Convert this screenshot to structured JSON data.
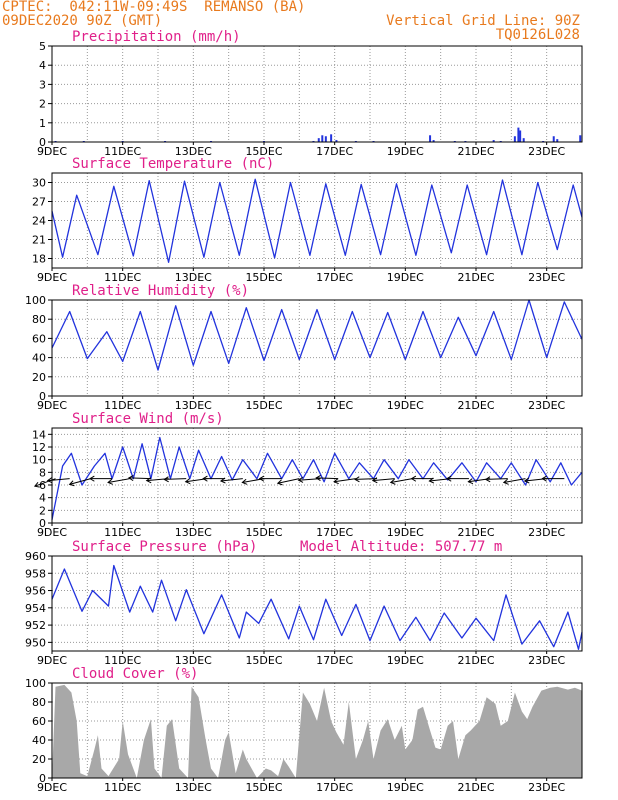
{
  "header": {
    "left_line1": "CPTEC:  042:11W-09:49S  REMANSO (BA)",
    "left_line2": "09DEC2020 90Z (GMT)",
    "right_line1": "Vertical Grid Line: 90Z",
    "right_line2": "TQ0126L028"
  },
  "colors": {
    "header": "#e87a1e",
    "title": "#e0208a",
    "line": "#2233dd",
    "bar": "#a8a8a8",
    "grid": "#9a9a9a"
  },
  "chart_data": [
    {
      "type": "bar",
      "title": "Precipitation (mm/h)",
      "x_labels": [
        "9DEC",
        "11DEC",
        "13DEC",
        "15DEC",
        "17DEC",
        "19DEC",
        "21DEC",
        "23DEC"
      ],
      "x_range_days": [
        0,
        15
      ],
      "ylim": [
        0,
        5
      ],
      "yticks": [
        0,
        1,
        2,
        3,
        4,
        5
      ],
      "color": "line",
      "points": [
        [
          0.1,
          0.05
        ],
        [
          0.9,
          0.05
        ],
        [
          2.0,
          0.05
        ],
        [
          3.2,
          0.05
        ],
        [
          4.5,
          0.05
        ],
        [
          6.0,
          0.05
        ],
        [
          7.4,
          0.05
        ],
        [
          7.55,
          0.2
        ],
        [
          7.65,
          0.35
        ],
        [
          7.75,
          0.3
        ],
        [
          7.9,
          0.4
        ],
        [
          8.05,
          0.1
        ],
        [
          8.6,
          0.05
        ],
        [
          9.1,
          0.05
        ],
        [
          10.7,
          0.35
        ],
        [
          10.8,
          0.1
        ],
        [
          11.4,
          0.05
        ],
        [
          11.7,
          0.05
        ],
        [
          12.5,
          0.1
        ],
        [
          12.7,
          0.05
        ],
        [
          13.1,
          0.3
        ],
        [
          13.2,
          0.75
        ],
        [
          13.25,
          0.6
        ],
        [
          13.35,
          0.2
        ],
        [
          13.9,
          0.05
        ],
        [
          14.2,
          0.3
        ],
        [
          14.3,
          0.15
        ],
        [
          14.95,
          0.35
        ]
      ]
    },
    {
      "type": "line",
      "title": "Surface Temperature (nC)",
      "x_labels": [
        "9DEC",
        "11DEC",
        "13DEC",
        "15DEC",
        "17DEC",
        "19DEC",
        "21DEC",
        "23DEC"
      ],
      "x_range_days": [
        0,
        15
      ],
      "ylim": [
        16.5,
        31.5
      ],
      "yticks": [
        18,
        21,
        24,
        27,
        30
      ],
      "color": "line",
      "points": [
        [
          0,
          25.5
        ],
        [
          0.3,
          18.2
        ],
        [
          0.7,
          28
        ],
        [
          1.3,
          18.6
        ],
        [
          1.75,
          29.4
        ],
        [
          2.3,
          18.4
        ],
        [
          2.75,
          30.3
        ],
        [
          3.3,
          17.4
        ],
        [
          3.75,
          30.2
        ],
        [
          4.3,
          18.2
        ],
        [
          4.75,
          30
        ],
        [
          5.3,
          18.5
        ],
        [
          5.75,
          30.5
        ],
        [
          6.3,
          18.1
        ],
        [
          6.75,
          30
        ],
        [
          7.3,
          18.5
        ],
        [
          7.75,
          29.8
        ],
        [
          8.3,
          18.5
        ],
        [
          8.75,
          29.7
        ],
        [
          9.3,
          18.6
        ],
        [
          9.75,
          29.8
        ],
        [
          10.3,
          18.5
        ],
        [
          10.75,
          29.6
        ],
        [
          11.3,
          18.9
        ],
        [
          11.75,
          29.6
        ],
        [
          12.3,
          18.6
        ],
        [
          12.75,
          30.4
        ],
        [
          13.3,
          18.6
        ],
        [
          13.75,
          30
        ],
        [
          14.3,
          19.4
        ],
        [
          14.75,
          29.6
        ],
        [
          15,
          24.5
        ]
      ]
    },
    {
      "type": "line",
      "title": "Relative Humidity (%)",
      "x_labels": [
        "9DEC",
        "11DEC",
        "13DEC",
        "15DEC",
        "17DEC",
        "19DEC",
        "21DEC",
        "23DEC"
      ],
      "x_range_days": [
        0,
        15
      ],
      "ylim": [
        0,
        100
      ],
      "yticks": [
        0,
        20,
        40,
        60,
        80,
        100
      ],
      "color": "line",
      "points": [
        [
          0,
          50
        ],
        [
          0.5,
          88
        ],
        [
          1.0,
          39
        ],
        [
          1.55,
          67
        ],
        [
          2.0,
          36
        ],
        [
          2.5,
          88
        ],
        [
          3.0,
          27
        ],
        [
          3.5,
          94
        ],
        [
          4.0,
          32
        ],
        [
          4.5,
          88
        ],
        [
          5.0,
          34
        ],
        [
          5.5,
          92
        ],
        [
          6.0,
          37
        ],
        [
          6.5,
          90
        ],
        [
          7.0,
          38
        ],
        [
          7.5,
          90
        ],
        [
          8.0,
          38
        ],
        [
          8.5,
          88
        ],
        [
          9.0,
          40
        ],
        [
          9.5,
          87
        ],
        [
          10.0,
          38
        ],
        [
          10.5,
          88
        ],
        [
          11.0,
          40
        ],
        [
          11.5,
          82
        ],
        [
          12.0,
          42
        ],
        [
          12.5,
          88
        ],
        [
          13.0,
          38
        ],
        [
          13.5,
          100
        ],
        [
          14.0,
          40
        ],
        [
          14.5,
          98
        ],
        [
          15.0,
          59
        ]
      ]
    },
    {
      "type": "line",
      "title": "Surface Wind (m/s)",
      "x_labels": [
        "9DEC",
        "11DEC",
        "13DEC",
        "15DEC",
        "17DEC",
        "19DEC",
        "21DEC",
        "23DEC"
      ],
      "x_range_days": [
        0,
        15
      ],
      "ylim": [
        0,
        15
      ],
      "yticks": [
        0,
        2,
        4,
        6,
        8,
        10,
        12,
        14
      ],
      "color": "line",
      "points": [
        [
          0,
          0.5
        ],
        [
          0.3,
          9
        ],
        [
          0.55,
          11
        ],
        [
          0.85,
          6
        ],
        [
          1.2,
          9
        ],
        [
          1.5,
          11
        ],
        [
          1.7,
          7
        ],
        [
          2.0,
          12
        ],
        [
          2.3,
          7
        ],
        [
          2.55,
          12.5
        ],
        [
          2.8,
          7
        ],
        [
          3.05,
          13.5
        ],
        [
          3.35,
          7
        ],
        [
          3.6,
          12
        ],
        [
          3.9,
          7
        ],
        [
          4.15,
          11.5
        ],
        [
          4.5,
          7
        ],
        [
          4.8,
          10.5
        ],
        [
          5.1,
          6.8
        ],
        [
          5.4,
          10
        ],
        [
          5.8,
          7
        ],
        [
          6.1,
          11
        ],
        [
          6.5,
          7
        ],
        [
          6.8,
          10
        ],
        [
          7.1,
          7
        ],
        [
          7.4,
          10
        ],
        [
          7.7,
          6.5
        ],
        [
          8.0,
          11
        ],
        [
          8.4,
          7
        ],
        [
          8.7,
          9.5
        ],
        [
          9.1,
          7
        ],
        [
          9.4,
          10
        ],
        [
          9.8,
          7
        ],
        [
          10.1,
          10
        ],
        [
          10.5,
          7
        ],
        [
          10.8,
          9.5
        ],
        [
          11.2,
          6.8
        ],
        [
          11.6,
          9.5
        ],
        [
          12.0,
          6.5
        ],
        [
          12.3,
          9.5
        ],
        [
          12.7,
          7
        ],
        [
          13.0,
          9.5
        ],
        [
          13.4,
          6
        ],
        [
          13.7,
          10
        ],
        [
          14.1,
          6.5
        ],
        [
          14.4,
          9.5
        ],
        [
          14.7,
          6
        ],
        [
          15.0,
          8
        ]
      ],
      "vector_x_days": [
        0.1,
        0.5,
        1.1,
        1.7,
        2.2,
        2.8,
        3.3,
        3.8,
        4.4,
        4.9,
        5.4,
        6.0,
        6.5,
        7.0,
        7.6,
        8.1,
        8.6,
        9.2,
        9.7,
        10.2,
        10.8,
        11.3,
        11.8,
        12.4,
        12.9,
        13.4,
        14.0,
        14.5
      ],
      "vector_angles_deg": [
        200,
        185,
        195,
        180,
        190,
        178,
        185,
        182,
        188,
        180,
        186,
        190,
        180,
        192,
        184,
        178,
        188,
        182,
        185,
        190,
        180,
        186,
        180,
        188,
        182,
        190,
        186,
        180
      ],
      "vector_base_value": 7
    },
    {
      "type": "line",
      "title": "Surface Pressure (hPa)",
      "annotation": "Model Altitude: 507.77 m",
      "x_labels": [
        "9DEC",
        "11DEC",
        "13DEC",
        "15DEC",
        "17DEC",
        "19DEC",
        "21DEC",
        "23DEC"
      ],
      "x_range_days": [
        0,
        15
      ],
      "ylim": [
        949,
        960
      ],
      "yticks": [
        950,
        952,
        954,
        956,
        958,
        960
      ],
      "color": "line",
      "points": [
        [
          0,
          955
        ],
        [
          0.35,
          958.5
        ],
        [
          0.85,
          953.6
        ],
        [
          1.15,
          956
        ],
        [
          1.6,
          954.2
        ],
        [
          1.75,
          958.9
        ],
        [
          2.2,
          953.5
        ],
        [
          2.5,
          956.5
        ],
        [
          2.85,
          953.5
        ],
        [
          3.1,
          957.2
        ],
        [
          3.5,
          952.5
        ],
        [
          3.8,
          956.1
        ],
        [
          4.3,
          951
        ],
        [
          4.8,
          955.5
        ],
        [
          5.3,
          950.5
        ],
        [
          5.5,
          953.5
        ],
        [
          5.85,
          952.2
        ],
        [
          6.2,
          955
        ],
        [
          6.7,
          950.4
        ],
        [
          7.0,
          954.2
        ],
        [
          7.4,
          950.3
        ],
        [
          7.75,
          955
        ],
        [
          8.2,
          950.8
        ],
        [
          8.6,
          954.4
        ],
        [
          9.0,
          950.2
        ],
        [
          9.4,
          954.2
        ],
        [
          9.85,
          950.2
        ],
        [
          10.3,
          952.9
        ],
        [
          10.7,
          950.2
        ],
        [
          11.1,
          953.4
        ],
        [
          11.6,
          950.5
        ],
        [
          12.0,
          952.8
        ],
        [
          12.5,
          950.2
        ],
        [
          12.85,
          955.5
        ],
        [
          13.3,
          949.8
        ],
        [
          13.8,
          952.5
        ],
        [
          14.2,
          949.5
        ],
        [
          14.6,
          953.5
        ],
        [
          14.9,
          949.2
        ],
        [
          15.0,
          951.2
        ]
      ]
    },
    {
      "type": "area",
      "title": "Cloud Cover (%)",
      "x_labels": [
        "9DEC",
        "11DEC",
        "13DEC",
        "15DEC",
        "17DEC",
        "19DEC",
        "21DEC",
        "23DEC"
      ],
      "x_range_days": [
        0,
        15
      ],
      "ylim": [
        0,
        100
      ],
      "yticks": [
        0,
        20,
        40,
        60,
        80,
        100
      ],
      "color": "bar",
      "points": [
        [
          0,
          0
        ],
        [
          0.1,
          96
        ],
        [
          0.35,
          98
        ],
        [
          0.55,
          90
        ],
        [
          0.7,
          60
        ],
        [
          0.8,
          5
        ],
        [
          1.0,
          2
        ],
        [
          1.2,
          30
        ],
        [
          1.3,
          45
        ],
        [
          1.4,
          10
        ],
        [
          1.6,
          2
        ],
        [
          1.9,
          20
        ],
        [
          2.0,
          60
        ],
        [
          2.15,
          25
        ],
        [
          2.4,
          0
        ],
        [
          2.6,
          40
        ],
        [
          2.8,
          62
        ],
        [
          2.9,
          10
        ],
        [
          3.1,
          0
        ],
        [
          3.25,
          55
        ],
        [
          3.4,
          62
        ],
        [
          3.6,
          10
        ],
        [
          3.85,
          0
        ],
        [
          3.95,
          96
        ],
        [
          4.15,
          85
        ],
        [
          4.35,
          40
        ],
        [
          4.5,
          10
        ],
        [
          4.7,
          0
        ],
        [
          4.9,
          40
        ],
        [
          5.0,
          48
        ],
        [
          5.2,
          5
        ],
        [
          5.4,
          30
        ],
        [
          5.5,
          20
        ],
        [
          5.8,
          0
        ],
        [
          6.05,
          10
        ],
        [
          6.2,
          8
        ],
        [
          6.4,
          2
        ],
        [
          6.55,
          20
        ],
        [
          6.7,
          12
        ],
        [
          6.9,
          0
        ],
        [
          7.1,
          90
        ],
        [
          7.3,
          78
        ],
        [
          7.5,
          60
        ],
        [
          7.7,
          95
        ],
        [
          7.9,
          60
        ],
        [
          8.05,
          48
        ],
        [
          8.25,
          35
        ],
        [
          8.4,
          80
        ],
        [
          8.6,
          20
        ],
        [
          8.8,
          40
        ],
        [
          8.95,
          60
        ],
        [
          9.1,
          20
        ],
        [
          9.3,
          50
        ],
        [
          9.5,
          62
        ],
        [
          9.7,
          40
        ],
        [
          9.9,
          55
        ],
        [
          10.0,
          30
        ],
        [
          10.2,
          40
        ],
        [
          10.35,
          72
        ],
        [
          10.5,
          75
        ],
        [
          10.7,
          50
        ],
        [
          10.85,
          32
        ],
        [
          11.0,
          30
        ],
        [
          11.2,
          55
        ],
        [
          11.35,
          60
        ],
        [
          11.5,
          20
        ],
        [
          11.7,
          45
        ],
        [
          11.85,
          50
        ],
        [
          12.1,
          60
        ],
        [
          12.3,
          85
        ],
        [
          12.55,
          78
        ],
        [
          12.7,
          55
        ],
        [
          12.9,
          60
        ],
        [
          13.1,
          90
        ],
        [
          13.3,
          70
        ],
        [
          13.45,
          62
        ],
        [
          13.6,
          75
        ],
        [
          13.85,
          92
        ],
        [
          14.1,
          95
        ],
        [
          14.3,
          96
        ],
        [
          14.6,
          93
        ],
        [
          14.8,
          95
        ],
        [
          15.0,
          92
        ]
      ]
    }
  ]
}
